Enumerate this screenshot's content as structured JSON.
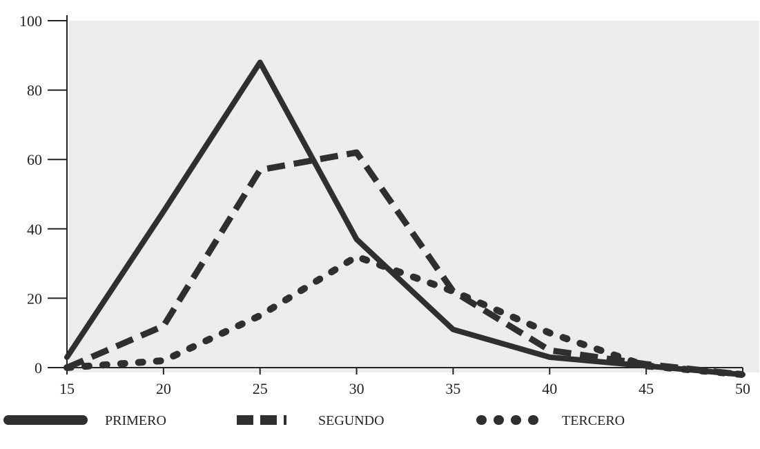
{
  "chart_data": {
    "type": "line",
    "title": "",
    "xlabel": "",
    "ylabel": "",
    "x": [
      15,
      20,
      25,
      30,
      35,
      40,
      45,
      50
    ],
    "xlim": [
      15,
      50
    ],
    "ylim": [
      0,
      100
    ],
    "x_ticks": [
      "15",
      "20",
      "25",
      "30",
      "35",
      "40",
      "45",
      "50"
    ],
    "y_ticks": [
      "0",
      "20",
      "40",
      "60",
      "80",
      "100"
    ],
    "series": [
      {
        "name": "PRIMERO",
        "style": "solid",
        "values": [
          3,
          45,
          88,
          37,
          11,
          3,
          0.5,
          -2
        ]
      },
      {
        "name": "SEGUNDO",
        "style": "dashed",
        "values": [
          0,
          12,
          57,
          62,
          22,
          5,
          1,
          -2
        ]
      },
      {
        "name": "TERCERO",
        "style": "dotted",
        "values": [
          0,
          2,
          15,
          32,
          22,
          10,
          0.5,
          -2
        ]
      }
    ],
    "legend": {
      "position": "bottom"
    },
    "colors": {
      "line": "#2f2f2f",
      "plot_background": "#ececec",
      "axis": "#222222"
    },
    "grid": false
  }
}
